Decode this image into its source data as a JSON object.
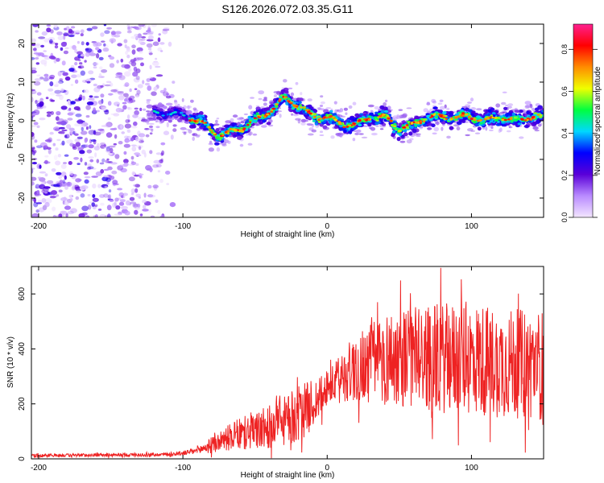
{
  "title": "S126.2026.072.03.35.G11",
  "chart_data": [
    {
      "type": "heatmap",
      "title": "S126.2026.072.03.35.G11",
      "xlabel": "Height of straight line (km)",
      "ylabel": "Frequency (Hz)",
      "xlim": [
        -205,
        150
      ],
      "ylim": [
        -25,
        25
      ],
      "xticks": [
        -200,
        -100,
        0,
        100
      ],
      "yticks": [
        -20,
        -10,
        0,
        10,
        20
      ],
      "grid": false,
      "ridge": {
        "x": [
          -125,
          -110,
          -95,
          -85,
          -75,
          -60,
          -45,
          -35,
          -30,
          -20,
          -10,
          0,
          10,
          20,
          30,
          40,
          50,
          60,
          70,
          80,
          90,
          100,
          110,
          120,
          130,
          140,
          150
        ],
        "freq": [
          2,
          2,
          1,
          -1,
          -4,
          -2,
          1,
          4,
          6,
          4,
          1,
          1,
          -1,
          -1,
          1,
          1,
          -2,
          -1,
          1,
          1,
          1,
          1,
          0,
          1,
          0,
          1,
          1
        ]
      },
      "colorbar": {
        "label": "Normalized spectral amplitude",
        "range": [
          0,
          0.92
        ],
        "ticks": [
          0.0,
          0.2,
          0.4,
          0.6,
          0.8
        ],
        "tick_labels": [
          "0.0",
          "0.2",
          "0.4",
          "0.6",
          "0.8"
        ],
        "colors": [
          "#f3e6ff",
          "#b98bff",
          "#5a00d8",
          "#0000ff",
          "#00d8ff",
          "#00ff40",
          "#f0ff00",
          "#ff8c00",
          "#ff0000",
          "#ff2090"
        ]
      }
    },
    {
      "type": "line",
      "xlabel": "Height of straight line (km)",
      "ylabel": "SNR (10 * v/v)",
      "xlim": [
        -205,
        150
      ],
      "ylim": [
        0,
        700
      ],
      "xticks": [
        -200,
        -100,
        0,
        100
      ],
      "yticks": [
        0,
        200,
        400,
        600
      ],
      "grid": false,
      "series": [
        {
          "name": "SNR",
          "color": "#ee2222",
          "envelope": {
            "x": [
              -205,
              -120,
              -100,
              -90,
              -80,
              -70,
              -60,
              -50,
              -40,
              -30,
              -20,
              -10,
              0,
              10,
              20,
              30,
              40,
              60,
              80,
              100,
              120,
              150
            ],
            "mean": [
              12,
              15,
              20,
              30,
              50,
              75,
              90,
              100,
              115,
              135,
              160,
              200,
              250,
              300,
              330,
              350,
              365,
              370,
              365,
              365,
              350,
              340
            ],
            "spread": [
              6,
              6,
              8,
              14,
              30,
              45,
              60,
              70,
              80,
              90,
              105,
              90,
              60,
              90,
              130,
              150,
              170,
              190,
              200,
              210,
              200,
              200
            ]
          }
        }
      ]
    }
  ],
  "colors": {
    "line": "#ee2222",
    "axis": "#000000",
    "background": "#ffffff"
  }
}
